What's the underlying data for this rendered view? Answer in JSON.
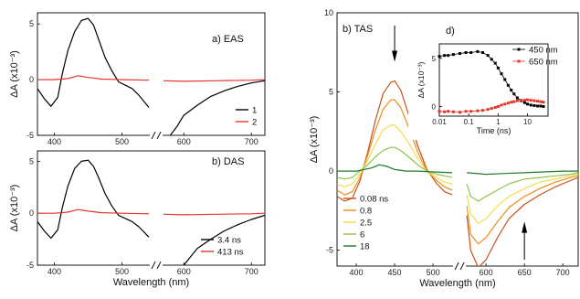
{
  "chart_data": [
    {
      "panel": "EAS",
      "type": "line",
      "title": "a) EAS",
      "xlabel": "",
      "ylabel": "ΔA (x10⁻³)",
      "xlim": [
        375,
        720
      ],
      "xbreak": [
        540,
        570
      ],
      "ylim": [
        -5,
        6
      ],
      "xticks": [
        400,
        500,
        600,
        700
      ],
      "yticks": [
        -5,
        0,
        5
      ],
      "legend_position": "bottom-right",
      "series": [
        {
          "name": "1",
          "color": "#000000",
          "x": [
            375,
            385,
            395,
            405,
            412,
            420,
            430,
            440,
            450,
            458,
            465,
            475,
            485,
            495,
            505,
            515,
            525,
            540,
            580,
            590,
            600,
            620,
            640,
            660,
            680,
            700,
            720
          ],
          "y": [
            -0.8,
            -1.7,
            -2.4,
            -1.6,
            0.6,
            2.6,
            4.3,
            5.3,
            5.5,
            4.9,
            3.7,
            2.0,
            0.8,
            -0.2,
            -0.5,
            -0.8,
            -1.4,
            -2.5,
            -5.0,
            -4.2,
            -3.2,
            -2.3,
            -1.5,
            -1.0,
            -0.6,
            -0.3,
            -0.1
          ]
        },
        {
          "name": "2",
          "color": "#e8342c",
          "x": [
            375,
            400,
            420,
            435,
            450,
            470,
            500,
            540,
            570,
            600,
            650,
            700,
            720
          ],
          "y": [
            0.0,
            0.0,
            0.1,
            0.35,
            0.2,
            0.05,
            0.0,
            -0.05,
            -0.1,
            -0.15,
            -0.1,
            -0.05,
            0.0
          ]
        }
      ]
    },
    {
      "panel": "DAS",
      "type": "line",
      "title": "b) DAS",
      "xlabel": "Wavelength (nm)",
      "ylabel": "ΔA (x10⁻³)",
      "xlim": [
        375,
        720
      ],
      "xbreak": [
        540,
        570
      ],
      "ylim": [
        -5,
        6
      ],
      "xticks": [
        400,
        500,
        600,
        700
      ],
      "yticks": [
        -5,
        0,
        5
      ],
      "legend_position": "bottom-right",
      "series": [
        {
          "name": "3.4 ns",
          "color": "#000000",
          "x": [
            375,
            385,
            395,
            405,
            412,
            420,
            430,
            440,
            450,
            458,
            465,
            475,
            485,
            495,
            505,
            515,
            525,
            540,
            600,
            610,
            620,
            640,
            660,
            680,
            700,
            720
          ],
          "y": [
            -0.8,
            -1.7,
            -2.4,
            -1.6,
            0.6,
            2.6,
            4.3,
            5.0,
            5.1,
            4.5,
            3.5,
            1.9,
            0.7,
            -0.2,
            -0.5,
            -0.8,
            -1.3,
            -2.3,
            -5.0,
            -4.2,
            -3.4,
            -2.5,
            -1.7,
            -1.1,
            -0.6,
            -0.2
          ]
        },
        {
          "name": "413 ns",
          "color": "#e8342c",
          "x": [
            375,
            400,
            420,
            435,
            450,
            470,
            500,
            540,
            570,
            600,
            650,
            700,
            720
          ],
          "y": [
            0.0,
            0.0,
            0.1,
            0.35,
            0.2,
            0.05,
            0.0,
            -0.05,
            -0.1,
            -0.15,
            -0.1,
            -0.05,
            0.0
          ]
        }
      ]
    },
    {
      "panel": "TAS",
      "type": "line",
      "title": "b) TAS",
      "xlabel": "Wavelength (nm)",
      "ylabel": "ΔA (x10⁻³)",
      "xlim": [
        375,
        720
      ],
      "xbreak": [
        525,
        575
      ],
      "ylim": [
        -6,
        10
      ],
      "xticks": [
        400,
        450,
        500,
        600,
        650,
        700
      ],
      "yticks": [
        -5,
        0,
        5,
        10
      ],
      "legend_position": "bottom-left",
      "annotations": [
        "down-arrow at 450 nm",
        "up-arrow at 650 nm"
      ],
      "series": [
        {
          "name": "0.08 ns",
          "color": "#c8531c",
          "x": [
            375,
            385,
            395,
            405,
            415,
            425,
            435,
            445,
            450,
            458,
            468,
            480,
            492,
            505,
            515,
            525,
            575,
            580,
            590,
            600,
            615,
            630,
            650,
            670,
            690,
            710,
            720
          ],
          "y": [
            -1.6,
            -1.9,
            -1.7,
            -0.6,
            1.2,
            3.2,
            4.9,
            5.6,
            5.7,
            5.1,
            3.6,
            1.6,
            0.1,
            -0.8,
            -1.3,
            -1.5,
            -2.8,
            -5.0,
            -6.1,
            -5.6,
            -4.2,
            -3.0,
            -2.1,
            -1.5,
            -1.0,
            -0.6,
            -0.4
          ]
        },
        {
          "name": "0.8",
          "color": "#f08c1e",
          "x": [
            375,
            385,
            395,
            405,
            415,
            425,
            435,
            445,
            450,
            458,
            468,
            480,
            492,
            505,
            515,
            525,
            575,
            580,
            590,
            600,
            615,
            630,
            650,
            670,
            690,
            710,
            720
          ],
          "y": [
            -1.2,
            -1.5,
            -1.3,
            -0.4,
            1.0,
            2.6,
            3.9,
            4.5,
            4.5,
            4.0,
            2.8,
            1.2,
            0.0,
            -0.6,
            -1.0,
            -1.2,
            -2.2,
            -4.0,
            -4.6,
            -4.2,
            -3.2,
            -2.3,
            -1.6,
            -1.1,
            -0.7,
            -0.4,
            -0.3
          ]
        },
        {
          "name": "2.5",
          "color": "#f3dc4c",
          "x": [
            375,
            385,
            395,
            405,
            415,
            425,
            435,
            445,
            450,
            458,
            468,
            480,
            492,
            505,
            515,
            525,
            575,
            580,
            590,
            600,
            615,
            630,
            650,
            670,
            690,
            710,
            720
          ],
          "y": [
            -0.8,
            -1.0,
            -0.8,
            -0.2,
            0.7,
            1.7,
            2.6,
            2.9,
            2.9,
            2.5,
            1.8,
            0.8,
            0.0,
            -0.4,
            -0.7,
            -0.8,
            -1.5,
            -2.7,
            -3.3,
            -3.0,
            -2.2,
            -1.6,
            -1.1,
            -0.7,
            -0.5,
            -0.3,
            -0.2
          ]
        },
        {
          "name": "6",
          "color": "#8ec44a",
          "x": [
            375,
            385,
            395,
            405,
            415,
            425,
            435,
            445,
            450,
            458,
            468,
            480,
            492,
            505,
            515,
            525,
            575,
            580,
            590,
            600,
            615,
            630,
            650,
            670,
            690,
            710,
            720
          ],
          "y": [
            -0.4,
            -0.5,
            -0.4,
            0.0,
            0.4,
            0.9,
            1.3,
            1.5,
            1.5,
            1.3,
            0.9,
            0.4,
            0.0,
            -0.2,
            -0.3,
            -0.4,
            -0.8,
            -1.6,
            -1.9,
            -1.6,
            -1.2,
            -0.8,
            -0.5,
            -0.4,
            -0.3,
            -0.2,
            -0.1
          ]
        },
        {
          "name": "18",
          "color": "#1e7a2c",
          "x": [
            375,
            400,
            420,
            430,
            440,
            450,
            465,
            480,
            500,
            525,
            575,
            600,
            625,
            650,
            675,
            700,
            720
          ],
          "y": [
            0.0,
            0.0,
            0.2,
            0.4,
            0.3,
            0.1,
            0.0,
            0.0,
            -0.05,
            -0.1,
            -0.1,
            -0.2,
            -0.15,
            -0.1,
            -0.05,
            0.0,
            0.0
          ]
        }
      ]
    },
    {
      "panel": "inset",
      "type": "scatter",
      "title": "d)",
      "xlabel": "Time (ns)",
      "ylabel": "ΔA (x10⁻³)",
      "xscale": "log",
      "xlim": [
        0.01,
        50
      ],
      "ylim": [
        -1,
        6.5
      ],
      "xticks": [
        0.01,
        0.1,
        1,
        10
      ],
      "xticklabels": [
        "0.01",
        "0.1",
        "1",
        "10"
      ],
      "yticks": [
        0,
        5
      ],
      "legend_position": "top-right",
      "series": [
        {
          "name": "450 nm",
          "color": "#000000",
          "x": [
            0.01,
            0.015,
            0.02,
            0.03,
            0.05,
            0.08,
            0.12,
            0.2,
            0.3,
            0.45,
            0.6,
            0.8,
            1.0,
            1.3,
            1.7,
            2.2,
            2.8,
            3.5,
            4.5,
            6,
            8,
            10,
            13,
            17,
            22,
            28,
            35
          ],
          "y": [
            5.2,
            5.3,
            5.3,
            5.4,
            5.5,
            5.6,
            5.6,
            5.7,
            5.6,
            5.3,
            4.9,
            4.5,
            4.0,
            3.4,
            2.8,
            2.2,
            1.7,
            1.3,
            0.9,
            0.6,
            0.4,
            0.25,
            0.15,
            0.1,
            0.05,
            0.05,
            0.0
          ]
        },
        {
          "name": "650 nm",
          "color": "#e8342c",
          "x": [
            0.01,
            0.015,
            0.02,
            0.03,
            0.05,
            0.08,
            0.12,
            0.2,
            0.3,
            0.45,
            0.6,
            0.8,
            1.0,
            1.3,
            1.7,
            2.2,
            2.8,
            3.5,
            4.5,
            6,
            8,
            10,
            13,
            17,
            22,
            28,
            35
          ],
          "y": [
            -0.5,
            -0.55,
            -0.5,
            -0.55,
            -0.6,
            -0.5,
            -0.5,
            -0.45,
            -0.4,
            -0.3,
            -0.2,
            -0.1,
            0.0,
            0.15,
            0.25,
            0.35,
            0.45,
            0.5,
            0.6,
            0.65,
            0.65,
            0.7,
            0.65,
            0.6,
            0.55,
            0.5,
            0.45
          ]
        }
      ]
    }
  ]
}
